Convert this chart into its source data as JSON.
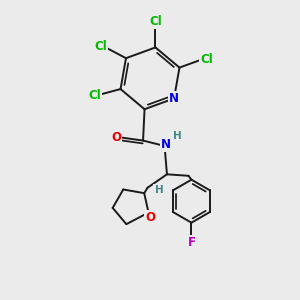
{
  "background_color": "#ebebeb",
  "bond_color": "#1a1a1a",
  "bond_width": 1.4,
  "dbo": 0.08,
  "atom_colors": {
    "Cl": "#00bb00",
    "N": "#0000ee",
    "O": "#ee0000",
    "F": "#bb00bb",
    "H": "#448888",
    "C": "#1a1a1a"
  },
  "font_size": 8.5,
  "font_size_h": 7.5,
  "figsize": [
    3.0,
    3.0
  ],
  "dpi": 100
}
